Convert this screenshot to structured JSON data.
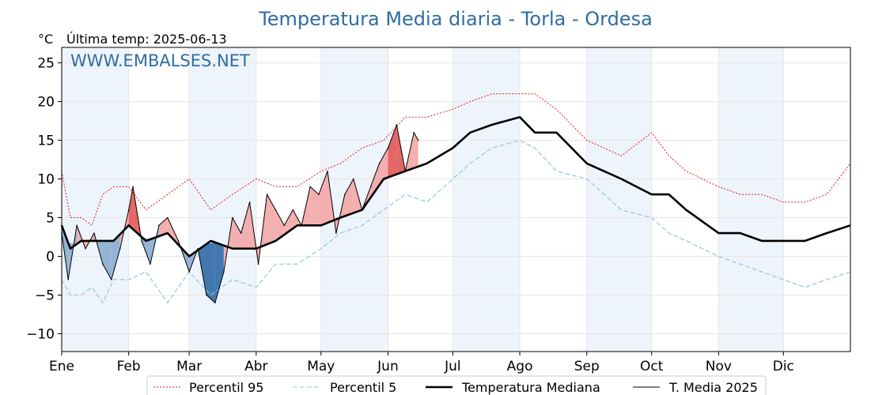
{
  "chart_data": {
    "type": "line",
    "title": "Temperatura Media diaria - Torla - Ordesa",
    "unit_label": "°C",
    "subtitle": "Última temp: 2025-06-13",
    "watermark": "WWW.EMBALSES.NET",
    "ylim": [
      -12.3,
      27.0
    ],
    "yticks": [
      25,
      20,
      15,
      10,
      5,
      0,
      -5,
      -10
    ],
    "ytick_labels": [
      "25",
      "20",
      "15",
      "10",
      "5",
      "0",
      "−5",
      "−10"
    ],
    "xlim_day": [
      1,
      366
    ],
    "months": [
      {
        "label": "Ene",
        "start_day": 1
      },
      {
        "label": "Feb",
        "start_day": 32
      },
      {
        "label": "Mar",
        "start_day": 60
      },
      {
        "label": "Abr",
        "start_day": 91
      },
      {
        "label": "May",
        "start_day": 121
      },
      {
        "label": "Jun",
        "start_day": 152
      },
      {
        "label": "Jul",
        "start_day": 182
      },
      {
        "label": "Ago",
        "start_day": 213
      },
      {
        "label": "Sep",
        "start_day": 244
      },
      {
        "label": "Oct",
        "start_day": 274
      },
      {
        "label": "Nov",
        "start_day": 305
      },
      {
        "label": "Dic",
        "start_day": 335
      }
    ],
    "grid": true,
    "legend_position": "bottom-center",
    "colors": {
      "p95": "#e41a1c",
      "p5": "#8ec9dd",
      "median": "#000000",
      "current": "#000000",
      "above_fill": "#f3a6a6",
      "above_fill_strong": "#e25555",
      "below_fill": "#8aadd0",
      "below_fill_strong": "#2f6aa6",
      "month_band": "#eef4fb",
      "title": "#2e6da4"
    },
    "series": [
      {
        "name": "Percentil 95",
        "style": "dotted-red",
        "x": [
          1,
          5,
          10,
          15,
          20,
          25,
          32,
          40,
          50,
          60,
          70,
          80,
          91,
          100,
          110,
          121,
          130,
          140,
          150,
          160,
          170,
          182,
          190,
          200,
          213,
          220,
          230,
          244,
          252,
          260,
          274,
          282,
          290,
          305,
          315,
          325,
          335,
          345,
          355,
          366
        ],
        "y": [
          11,
          5,
          5,
          4,
          8,
          9,
          9,
          6,
          8,
          10,
          6,
          8,
          10,
          9,
          9,
          11,
          12,
          14,
          15,
          18,
          18,
          19,
          20,
          21,
          21,
          21,
          19,
          15,
          14,
          13,
          16,
          13,
          11,
          9,
          8,
          8,
          7,
          7,
          8,
          12
        ]
      },
      {
        "name": "Percentil 5",
        "style": "dashed-lightblue",
        "x": [
          1,
          5,
          10,
          15,
          20,
          25,
          32,
          40,
          50,
          60,
          70,
          80,
          91,
          100,
          110,
          121,
          130,
          140,
          150,
          160,
          170,
          182,
          190,
          200,
          213,
          220,
          230,
          244,
          252,
          260,
          274,
          282,
          290,
          305,
          315,
          325,
          335,
          345,
          355,
          366
        ],
        "y": [
          -3,
          -5,
          -5,
          -4,
          -6,
          -3,
          -3,
          -2,
          -6,
          -2,
          -5,
          -3,
          -4,
          -1,
          -1,
          1,
          3,
          4,
          6,
          8,
          7,
          10,
          12,
          14,
          15,
          14,
          11,
          10,
          8,
          6,
          5,
          3,
          2,
          0,
          -1,
          -2,
          -3,
          -4,
          -3,
          -2
        ]
      },
      {
        "name": "Temperatura Mediana",
        "style": "thick-black",
        "x": [
          1,
          5,
          10,
          15,
          20,
          25,
          32,
          40,
          50,
          60,
          70,
          80,
          91,
          100,
          110,
          121,
          130,
          140,
          150,
          160,
          170,
          182,
          190,
          200,
          213,
          220,
          230,
          244,
          252,
          260,
          274,
          282,
          290,
          305,
          315,
          325,
          335,
          345,
          355,
          366
        ],
        "y": [
          4,
          1,
          2,
          2,
          2,
          2,
          4,
          2,
          3,
          0,
          2,
          1,
          1,
          2,
          4,
          4,
          5,
          6,
          10,
          11,
          12,
          14,
          16,
          17,
          18,
          16,
          16,
          12,
          11,
          10,
          8,
          8,
          6,
          3,
          3,
          2,
          2,
          2,
          3,
          4
        ]
      },
      {
        "name": "T. Media 2025",
        "style": "thin-black",
        "x": [
          1,
          4,
          8,
          12,
          16,
          20,
          24,
          28,
          32,
          34,
          38,
          42,
          46,
          50,
          55,
          60,
          64,
          68,
          72,
          76,
          80,
          84,
          88,
          92,
          96,
          100,
          104,
          108,
          112,
          116,
          120,
          124,
          128,
          132,
          136,
          140,
          144,
          148,
          152,
          156,
          160,
          164,
          166
        ],
        "y": [
          3,
          -3,
          4,
          1,
          3,
          -1,
          -3,
          1,
          6,
          9,
          2,
          -1,
          4,
          5,
          2,
          -2,
          1,
          -5,
          -6,
          -2,
          5,
          3,
          7,
          -1,
          8,
          6,
          4,
          6,
          4,
          9,
          8,
          11,
          3,
          8,
          10,
          6,
          9,
          12,
          14,
          17,
          11,
          16,
          15
        ]
      }
    ],
    "legend": [
      "Percentil 95",
      "Percentil 5",
      "Temperatura Mediana",
      "T. Media 2025"
    ]
  }
}
